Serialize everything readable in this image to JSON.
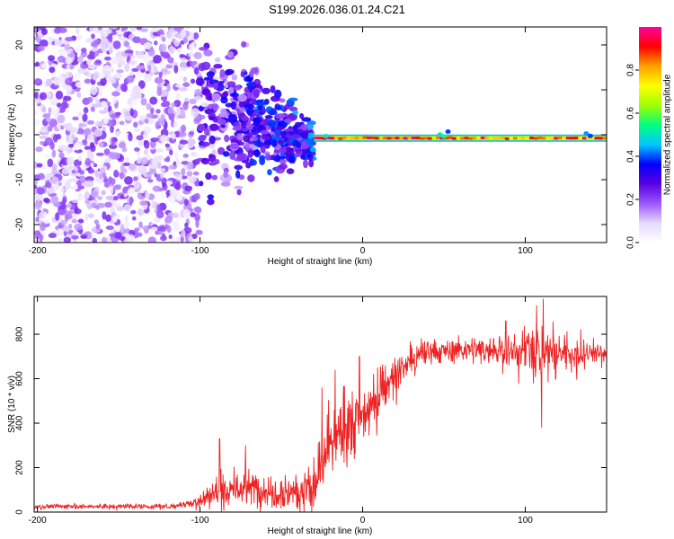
{
  "title": "S199.2026.036.01.24.C21",
  "chart_data": [
    {
      "type": "heatmap",
      "name": "spectrogram",
      "xlabel": "Height of straight line (km)",
      "ylabel": "Frequency (Hz)",
      "xlim": [
        -202,
        150
      ],
      "ylim": [
        -24,
        24
      ],
      "xticks": [
        -200,
        -100,
        0,
        100
      ],
      "yticks": [
        -20,
        -10,
        0,
        10,
        20
      ],
      "colorbar": {
        "label": "Normalized spectral amplitude",
        "range": [
          0,
          1
        ],
        "ticks": [
          0.0,
          0.2,
          0.4,
          0.6,
          0.8
        ],
        "tick_labels": [
          "0.0",
          "0.2",
          "0.4",
          "0.6",
          "0.8"
        ],
        "colormap": [
          "#ffffff",
          "#e6d9ff",
          "#9b55ff",
          "#5a00e0",
          "#0000ff",
          "#00c8ff",
          "#00ff80",
          "#a0ff00",
          "#ffff00",
          "#ffa000",
          "#ff0000",
          "#ff00a0"
        ]
      },
      "features": [
        {
          "description": "scattered noise blobs",
          "x_range": [
            -202,
            -100
          ],
          "freq_range": [
            -24,
            24
          ],
          "amplitude": 0.1
        },
        {
          "description": "converging noise",
          "x_range": [
            -100,
            -30
          ],
          "freq_range": [
            -10,
            18
          ],
          "amplitude": 0.15
        },
        {
          "description": "carrier line",
          "x_range": [
            -30,
            150
          ],
          "freq": [
            -1.5,
            0
          ],
          "amplitude": 0.9
        }
      ]
    },
    {
      "type": "line",
      "name": "snr",
      "xlabel": "Height of straight line (km)",
      "ylabel": "SNR (10 * v/v)",
      "xlim": [
        -202,
        150
      ],
      "ylim": [
        0,
        970
      ],
      "xticks": [
        -200,
        -100,
        0,
        100
      ],
      "yticks": [
        0,
        200,
        400,
        600,
        800
      ],
      "color": "#ee2222",
      "envelope": {
        "x": [
          -202,
          -120,
          -105,
          -90,
          -70,
          -50,
          -30,
          -20,
          -10,
          0,
          10,
          20,
          30,
          40,
          60,
          80,
          95,
          105,
          110,
          115,
          130,
          150
        ],
        "y": [
          25,
          25,
          40,
          90,
          110,
          95,
          100,
          300,
          380,
          430,
          530,
          620,
          680,
          720,
          730,
          730,
          720,
          730,
          700,
          720,
          720,
          715
        ]
      },
      "noise_amplitude": {
        "x": [
          -202,
          -110,
          -90,
          -30,
          -10,
          20,
          60,
          90,
          115,
          150
        ],
        "y": [
          8,
          10,
          60,
          80,
          140,
          60,
          40,
          70,
          90,
          30
        ]
      },
      "spikes": [
        {
          "x": -88,
          "y": 330
        },
        {
          "x": -72,
          "y": 300
        },
        {
          "x": -25,
          "y": 560
        },
        {
          "x": -17,
          "y": 640
        },
        {
          "x": -2,
          "y": 700
        },
        {
          "x": 88,
          "y": 860
        },
        {
          "x": 107,
          "y": 930
        },
        {
          "x": 111,
          "y": 960
        },
        {
          "x": 110,
          "y": 380
        }
      ]
    }
  ]
}
